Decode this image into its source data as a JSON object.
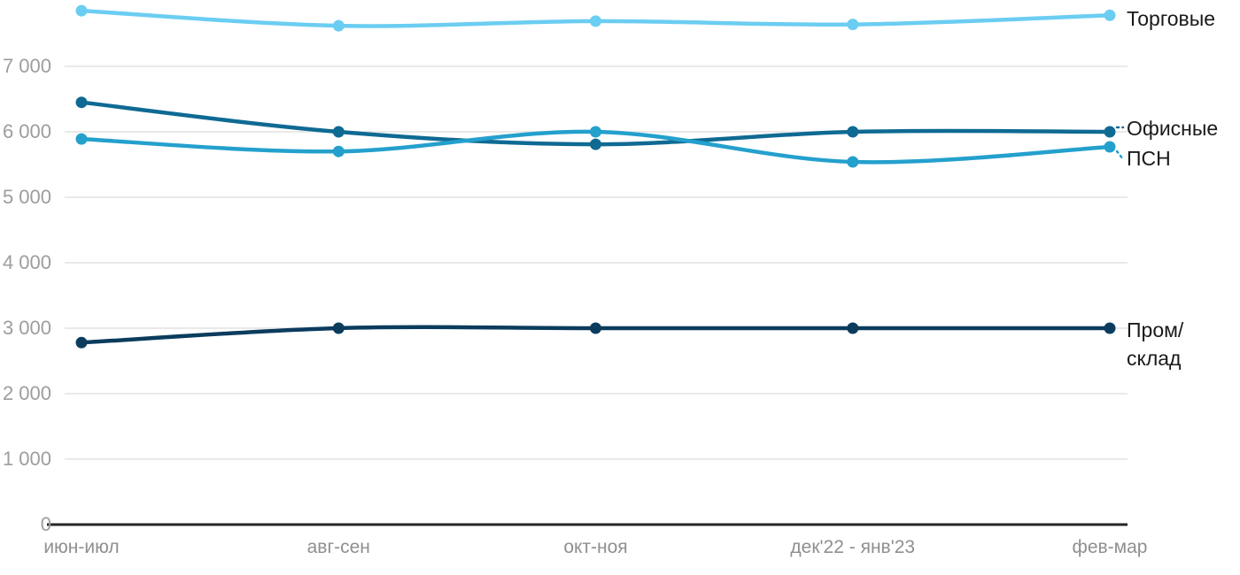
{
  "chart_data": {
    "type": "line",
    "categories": [
      "июн-июл",
      "авг-сен",
      "окт-ноя",
      "дек'22 - янв'23",
      "фев-мар"
    ],
    "series": [
      {
        "name": "Торговые",
        "color": "#6bcdf2",
        "values": [
          7850,
          7620,
          7690,
          7640,
          7780
        ],
        "label_dy": 4,
        "leader": false
      },
      {
        "name": "Офисные",
        "color": "#0f6a93",
        "values": [
          6450,
          6000,
          5810,
          6000,
          6000
        ],
        "label_dy": -4,
        "leader": true
      },
      {
        "name": "ПСН",
        "color": "#24a0cd",
        "values": [
          5890,
          5700,
          6000,
          5540,
          5770
        ],
        "label_dy": 13,
        "leader": true
      },
      {
        "name": "Пром/\nсклад",
        "color": "#0b3c5e",
        "values": [
          2780,
          3000,
          3000,
          3000,
          3000
        ],
        "label_dy": 2,
        "leader": false
      }
    ],
    "y_axis": {
      "min": 0,
      "max": 8000,
      "tick_step": 1000,
      "tick_labels": [
        "0",
        "1 000",
        "2 000",
        "3 000",
        "4 000",
        "5 000",
        "6 000",
        "7 000"
      ]
    },
    "x_axis": {
      "baseline_value": 0
    },
    "grid": "horizontal",
    "legend_position": "right-inline",
    "style": {
      "gridline_color": "#e9e9e9",
      "axis_line_color": "#262626",
      "y_tick_color": "#9d9d9d",
      "x_tick_color": "#8f8f8f",
      "series_label_color": "#1a1a1a",
      "background": "#ffffff"
    }
  }
}
